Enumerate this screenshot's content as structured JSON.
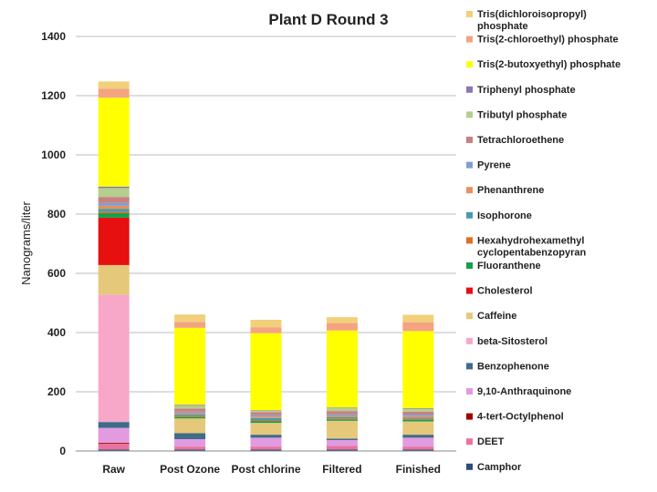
{
  "chart_data": {
    "type": "bar",
    "stacked": true,
    "title": "Plant D Round 3",
    "ylabel": "Nanograms/liter",
    "xlabel": "",
    "ylim": [
      0,
      1400
    ],
    "yticks": [
      0,
      200,
      400,
      600,
      800,
      1000,
      1200,
      1400
    ],
    "grid": true,
    "legend_position": "right",
    "categories": [
      "Raw",
      "Post Ozone",
      "Post chlorine",
      "Filtered",
      "Finished"
    ],
    "series": [
      {
        "name": "Camphor",
        "color": "#2F4B7C",
        "values": [
          5,
          5,
          5,
          5,
          5
        ]
      },
      {
        "name": "DEET",
        "color": "#E8739E",
        "values": [
          20,
          10,
          10,
          12,
          10
        ]
      },
      {
        "name": "4-tert-Octylphenol",
        "color": "#A30000",
        "values": [
          3,
          0,
          0,
          0,
          0
        ]
      },
      {
        "name": "9,10-Anthraquinone",
        "color": "#E29BE0",
        "values": [
          50,
          25,
          30,
          20,
          30
        ]
      },
      {
        "name": "Benzophenone",
        "color": "#3E6C8A",
        "values": [
          20,
          20,
          10,
          5,
          10
        ]
      },
      {
        "name": "beta-Sitosterol",
        "color": "#F7A8C8",
        "values": [
          430,
          0,
          0,
          0,
          0
        ]
      },
      {
        "name": "Caffeine",
        "color": "#E6C87A",
        "values": [
          100,
          50,
          40,
          60,
          45
        ]
      },
      {
        "name": "Cholesterol",
        "color": "#E61010",
        "values": [
          160,
          0,
          0,
          0,
          0
        ]
      },
      {
        "name": "Fluoranthene",
        "color": "#15A04A",
        "values": [
          15,
          5,
          5,
          5,
          5
        ]
      },
      {
        "name": "Hexahydrohexamethyl cyclopentabenzopyran",
        "color": "#E07020",
        "values": [
          5,
          3,
          3,
          3,
          3
        ]
      },
      {
        "name": "Isophorone",
        "color": "#4A9AAE",
        "values": [
          10,
          5,
          8,
          5,
          5
        ]
      },
      {
        "name": "Phenanthrene",
        "color": "#E8915A",
        "values": [
          10,
          5,
          5,
          5,
          5
        ]
      },
      {
        "name": "Pyrene",
        "color": "#7F9FCF",
        "values": [
          10,
          5,
          5,
          5,
          5
        ]
      },
      {
        "name": "Tetrachloroethene",
        "color": "#C98080",
        "values": [
          20,
          10,
          10,
          10,
          10
        ]
      },
      {
        "name": "Tributyl phosphate",
        "color": "#B5CF8E",
        "values": [
          30,
          10,
          5,
          10,
          10
        ]
      },
      {
        "name": "Triphenyl phosphate",
        "color": "#8B77B0",
        "values": [
          5,
          3,
          2,
          2,
          2
        ]
      },
      {
        "name": "Tris(2-butoxyethyl) phosphate",
        "color": "#FFFF00",
        "values": [
          300,
          260,
          260,
          260,
          260
        ]
      },
      {
        "name": "Tris(2-chloroethyl) phosphate",
        "color": "#F4A383",
        "values": [
          30,
          20,
          20,
          25,
          30
        ]
      },
      {
        "name": "Tris(dichloroisopropyl) phosphate",
        "color": "#F2D07A",
        "values": [
          25,
          25,
          25,
          20,
          25
        ]
      }
    ]
  }
}
